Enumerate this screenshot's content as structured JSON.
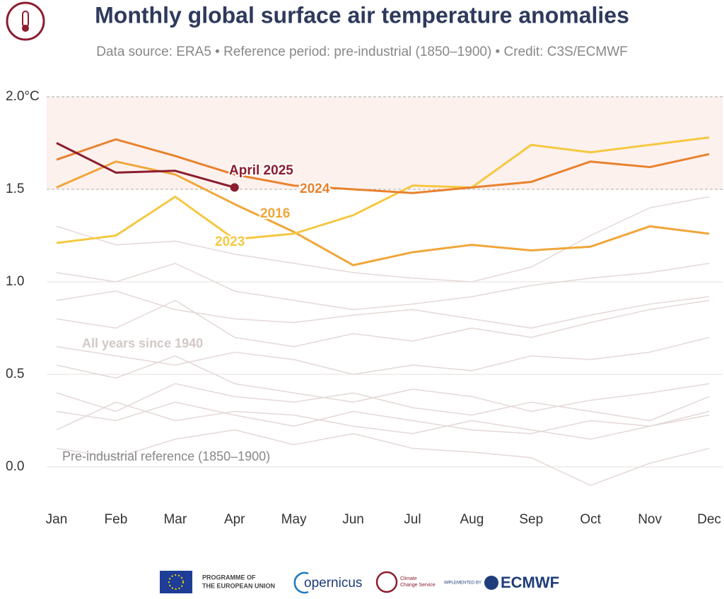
{
  "chart_data": {
    "type": "line",
    "title": "Monthly global surface air temperature anomalies",
    "subtitle": "Data source: ERA5 • Reference period: pre-industrial (1850–1900) • Credit: C3S/ECMWF",
    "categories": [
      "Jan",
      "Feb",
      "Mar",
      "Apr",
      "May",
      "Jun",
      "Jul",
      "Aug",
      "Sep",
      "Oct",
      "Nov",
      "Dec"
    ],
    "ylim": [
      -0.2,
      2.0
    ],
    "yticks": [
      {
        "value": 0,
        "label": "0.0"
      },
      0.5,
      {
        "value": 1,
        "label": "1.0"
      },
      1.5,
      {
        "value": 2,
        "label": "2.0°C"
      }
    ],
    "band": [
      1.5,
      2.0
    ],
    "band_color": "#fdf1ed",
    "annotations": [
      "All years since 1940",
      "Pre-industrial reference (1850–1900)"
    ],
    "background_series": [
      {
        "color": "#e4d8d6",
        "values": [
          0.3,
          0.25,
          0.35,
          0.28,
          0.22,
          0.3,
          0.25,
          0.2,
          0.18,
          0.25,
          0.22,
          0.3
        ]
      },
      {
        "color": "#e4d8d6",
        "values": [
          0.55,
          0.48,
          0.6,
          0.45,
          0.4,
          0.35,
          0.42,
          0.38,
          0.3,
          0.36,
          0.4,
          0.45
        ]
      },
      {
        "color": "#e4d8d6",
        "values": [
          0.1,
          0.05,
          0.15,
          0.2,
          0.12,
          0.18,
          0.1,
          0.08,
          0.05,
          -0.1,
          0.02,
          0.1
        ]
      },
      {
        "color": "#e4d8d6",
        "values": [
          0.8,
          0.75,
          0.9,
          0.7,
          0.65,
          0.72,
          0.68,
          0.75,
          0.7,
          0.78,
          0.85,
          0.9
        ]
      },
      {
        "color": "#e4d8d6",
        "values": [
          1.05,
          1.0,
          1.1,
          0.95,
          0.9,
          0.85,
          0.88,
          0.92,
          0.98,
          1.02,
          1.05,
          1.1
        ]
      },
      {
        "color": "#e4d8d6",
        "values": [
          0.2,
          0.35,
          0.25,
          0.3,
          0.28,
          0.22,
          0.18,
          0.25,
          0.2,
          0.15,
          0.22,
          0.28
        ]
      },
      {
        "color": "#e4d8d6",
        "values": [
          0.65,
          0.6,
          0.55,
          0.62,
          0.58,
          0.5,
          0.55,
          0.52,
          0.6,
          0.58,
          0.62,
          0.7
        ]
      },
      {
        "color": "#e4d8d6",
        "values": [
          1.3,
          1.2,
          1.22,
          1.15,
          1.1,
          1.05,
          1.02,
          1.0,
          1.08,
          1.25,
          1.4,
          1.46
        ]
      },
      {
        "color": "#e4d8d6",
        "values": [
          0.4,
          0.3,
          0.45,
          0.38,
          0.35,
          0.4,
          0.32,
          0.28,
          0.35,
          0.3,
          0.25,
          0.38
        ]
      },
      {
        "color": "#e4d8d6",
        "values": [
          0.9,
          0.95,
          0.85,
          0.8,
          0.78,
          0.82,
          0.85,
          0.8,
          0.75,
          0.82,
          0.88,
          0.92
        ]
      }
    ],
    "series": [
      {
        "name": "2016",
        "color": "#f0a63a",
        "values": [
          1.51,
          1.65,
          1.58,
          1.42,
          1.27,
          1.09,
          1.16,
          1.2,
          1.17,
          1.19,
          1.3,
          1.26
        ]
      },
      {
        "name": "2023",
        "color": "#f5c842",
        "values": [
          1.21,
          1.25,
          1.46,
          1.23,
          1.26,
          1.36,
          1.52,
          1.51,
          1.74,
          1.7,
          1.74,
          1.78
        ]
      },
      {
        "name": "2024",
        "color": "#e8822e",
        "values": [
          1.66,
          1.77,
          1.68,
          1.58,
          1.52,
          1.5,
          1.48,
          1.51,
          1.54,
          1.65,
          1.62,
          1.69
        ]
      },
      {
        "name": "April 2025",
        "color": "#8c1c2e",
        "values": [
          1.75,
          1.59,
          1.6,
          1.51,
          null,
          null,
          null,
          null,
          null,
          null,
          null,
          null
        ]
      }
    ]
  },
  "footer": {
    "eu": [
      "PROGRAMME OF",
      "THE EUROPEAN UNION"
    ],
    "copernicus": "opernicus",
    "c3s": [
      "Climate",
      "Change Service"
    ],
    "implemented": "IMPLEMENTED BY",
    "ecmwf": "ECMWF"
  }
}
